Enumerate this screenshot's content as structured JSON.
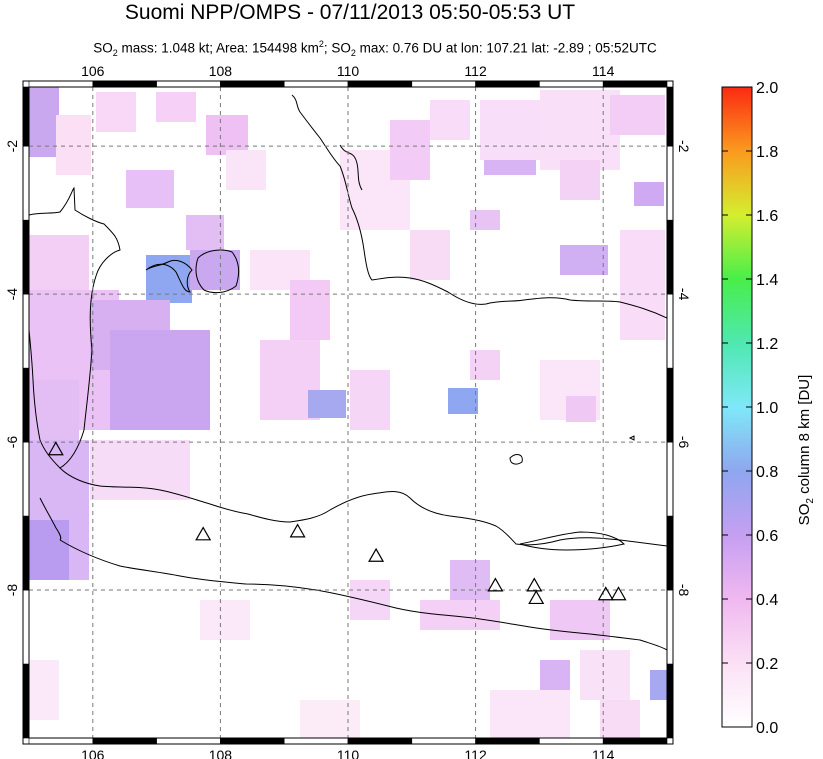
{
  "title": "Suomi NPP/OMPS - 07/11/2013 05:50-05:53 UT",
  "subtitle": {
    "mass_label": "SO",
    "mass_sub": "2",
    "mass_text": " mass: 1.048 kt; Area: 154498 km",
    "area_sup": "2",
    "max_text": "; SO",
    "max_sub": "2",
    "max_rest": " max: 0.76 DU at lon: 107.21 lat: -2.89 ; 05:52UTC"
  },
  "map": {
    "lon_range": [
      105,
      115
    ],
    "lat_range": [
      -10,
      -1.2
    ],
    "lon_ticks": [
      "106",
      "108",
      "110",
      "112",
      "114"
    ],
    "lat_ticks": [
      "-2",
      "-4",
      "-6",
      "-8"
    ],
    "volcano_markers": [
      {
        "lon": 105.42,
        "lat": -6.1
      },
      {
        "lon": 107.73,
        "lat": -7.25
      },
      {
        "lon": 109.21,
        "lat": -7.21
      },
      {
        "lon": 110.44,
        "lat": -7.54
      },
      {
        "lon": 112.31,
        "lat": -7.94
      },
      {
        "lon": 112.92,
        "lat": -7.94
      },
      {
        "lon": 112.95,
        "lat": -8.11
      },
      {
        "lon": 114.04,
        "lat": -8.06
      },
      {
        "lon": 114.24,
        "lat": -8.06
      }
    ]
  },
  "colorbar": {
    "title_main": "SO",
    "title_sub": "2",
    "title_rest": " column 8 km [DU]",
    "min": 0.0,
    "max": 2.0,
    "ticks": [
      "0.0",
      "0.2",
      "0.4",
      "0.6",
      "0.8",
      "1.0",
      "1.2",
      "1.4",
      "1.6",
      "1.8",
      "2.0"
    ]
  }
}
